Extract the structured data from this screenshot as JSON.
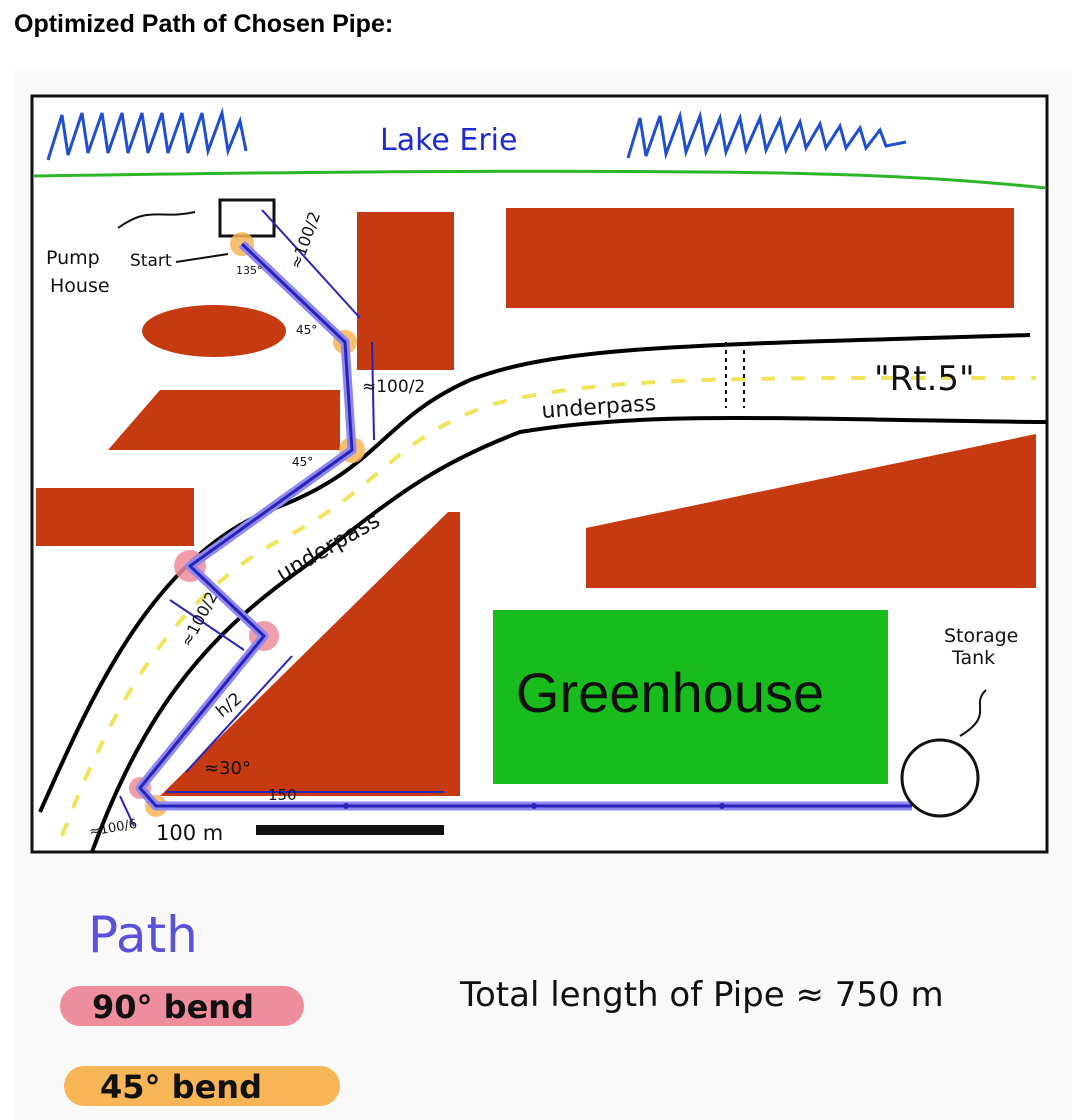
{
  "heading": "Optimized Path of Chosen Pipe:",
  "map": {
    "lake": "Lake Erie",
    "road": "\"Rt.5\"",
    "underpass_road": "underpass",
    "underpass_diag": "underpass",
    "pump_house": [
      "Pump",
      "House"
    ],
    "start": "Start",
    "greenhouse": "Greenhouse",
    "storage_tank": [
      "Storage",
      "Tank"
    ],
    "scale": "100 m",
    "dims": {
      "seg1": "≈100/2",
      "seg2": "≈100/2",
      "seg_mid": "≈100/2",
      "seg_low": "h/2",
      "seg_short": "≈100/6",
      "bottom": "150",
      "angle": "≈30°",
      "a45_1": "45°",
      "a45_2": "45°",
      "a135": "135°"
    }
  },
  "legend": {
    "title": "Path",
    "bend90": "90° bend",
    "bend45": "45° bend",
    "colors": {
      "path": "#5a53d9",
      "bend90": "#ee8d9b",
      "bend45": "#f7b555"
    }
  },
  "total": "Total length of Pipe ≈ 750 m",
  "colors": {
    "building": "#c63a12",
    "greenhouse": "#19bc1d",
    "pipe": "#2824b8",
    "lake": "#1f4ed0",
    "shore": "#2fb52a"
  }
}
